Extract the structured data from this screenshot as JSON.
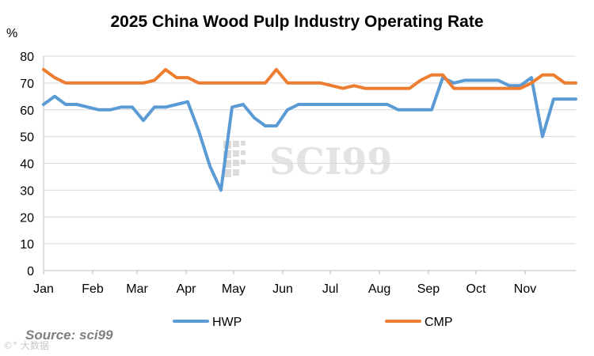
{
  "chart_data": {
    "type": "line",
    "title": "2025 China Wood Pulp Industry Operating Rate",
    "ylabel": "%",
    "xlabel": "",
    "ylim": [
      0,
      80
    ],
    "yticks": [
      0,
      10,
      20,
      30,
      40,
      50,
      60,
      70,
      80
    ],
    "grid": true,
    "legend_position": "bottom",
    "x_range_weeks": [
      0,
      48
    ],
    "month_ticks": [
      {
        "label": "Jan",
        "week": 0
      },
      {
        "label": "Feb",
        "week": 4.43
      },
      {
        "label": "Mar",
        "week": 8.43
      },
      {
        "label": "Apr",
        "week": 12.86
      },
      {
        "label": "May",
        "week": 17.14
      },
      {
        "label": "Jun",
        "week": 21.57
      },
      {
        "label": "Jul",
        "week": 25.86
      },
      {
        "label": "Aug",
        "week": 30.29
      },
      {
        "label": "Sep",
        "week": 34.71
      },
      {
        "label": "Oct",
        "week": 39
      },
      {
        "label": "Nov",
        "week": 43.43
      }
    ],
    "series": [
      {
        "name": "HWP",
        "color": "#5b9bd5",
        "points": [
          [
            0,
            62
          ],
          [
            1,
            65
          ],
          [
            2,
            62
          ],
          [
            3,
            62
          ],
          [
            4,
            61
          ],
          [
            5,
            60
          ],
          [
            6,
            60
          ],
          [
            7,
            61
          ],
          [
            8,
            61
          ],
          [
            9,
            56
          ],
          [
            10,
            61
          ],
          [
            11,
            61
          ],
          [
            12,
            62
          ],
          [
            13,
            63
          ],
          [
            14,
            52
          ],
          [
            15,
            39
          ],
          [
            16,
            30
          ],
          [
            17,
            61
          ],
          [
            18,
            62
          ],
          [
            19,
            57
          ],
          [
            20,
            54
          ],
          [
            21,
            54
          ],
          [
            22,
            60
          ],
          [
            23,
            62
          ],
          [
            24,
            62
          ],
          [
            25,
            62
          ],
          [
            26,
            62
          ],
          [
            27,
            62
          ],
          [
            28,
            62
          ],
          [
            29,
            62
          ],
          [
            30,
            62
          ],
          [
            31,
            62
          ],
          [
            32,
            60
          ],
          [
            33,
            60
          ],
          [
            34,
            60
          ],
          [
            35,
            60
          ],
          [
            36,
            72
          ],
          [
            37,
            70
          ],
          [
            38,
            71
          ],
          [
            39,
            71
          ],
          [
            40,
            71
          ],
          [
            41,
            71
          ],
          [
            42,
            69
          ],
          [
            43,
            69
          ],
          [
            44,
            72
          ],
          [
            45,
            50
          ],
          [
            46,
            64
          ],
          [
            47,
            64
          ],
          [
            48,
            64
          ]
        ]
      },
      {
        "name": "CMP",
        "color": "#ed7d31",
        "points": [
          [
            0,
            75
          ],
          [
            1,
            72
          ],
          [
            2,
            70
          ],
          [
            3,
            70
          ],
          [
            4,
            70
          ],
          [
            5,
            70
          ],
          [
            6,
            70
          ],
          [
            7,
            70
          ],
          [
            8,
            70
          ],
          [
            9,
            70
          ],
          [
            10,
            71
          ],
          [
            11,
            75
          ],
          [
            12,
            72
          ],
          [
            13,
            72
          ],
          [
            14,
            70
          ],
          [
            15,
            70
          ],
          [
            16,
            70
          ],
          [
            17,
            70
          ],
          [
            18,
            70
          ],
          [
            19,
            70
          ],
          [
            20,
            70
          ],
          [
            21,
            75
          ],
          [
            22,
            70
          ],
          [
            23,
            70
          ],
          [
            24,
            70
          ],
          [
            25,
            70
          ],
          [
            26,
            69
          ],
          [
            27,
            68
          ],
          [
            28,
            69
          ],
          [
            29,
            68
          ],
          [
            30,
            68
          ],
          [
            31,
            68
          ],
          [
            32,
            68
          ],
          [
            33,
            68
          ],
          [
            34,
            71
          ],
          [
            35,
            73
          ],
          [
            36,
            73
          ],
          [
            37,
            68
          ],
          [
            38,
            68
          ],
          [
            39,
            68
          ],
          [
            40,
            68
          ],
          [
            41,
            68
          ],
          [
            42,
            68
          ],
          [
            43,
            68
          ],
          [
            44,
            70
          ],
          [
            45,
            73
          ],
          [
            46,
            73
          ],
          [
            47,
            70
          ],
          [
            48,
            70
          ]
        ]
      }
    ]
  },
  "watermark": "SCI99",
  "source": "Source: sci99",
  "corner_mark": "©° 大数据"
}
